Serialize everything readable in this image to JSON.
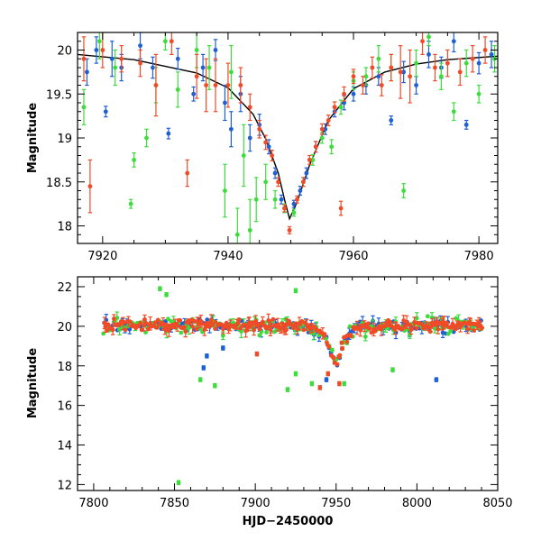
{
  "chart_data": [
    {
      "type": "scatter",
      "panel": "top",
      "xlabel": "",
      "ylabel": "Magnitude",
      "xlim": [
        7916,
        7983
      ],
      "ylim": [
        20.2,
        17.8
      ],
      "y_inverted": true,
      "x_ticks": [
        7920,
        7940,
        7960,
        7980
      ],
      "y_ticks": [
        18,
        18.5,
        19,
        19.5,
        20
      ],
      "y_tick_labels": [
        "18",
        "18.5",
        "19",
        "19.5",
        "20"
      ],
      "grid": false,
      "colors": {
        "blue": "#1f5fd6",
        "green": "#3ddc3d",
        "red": "#f04a26",
        "model": "#000000"
      },
      "model_curve": {
        "peak_x": 7949.8,
        "peak_mag": 18.08,
        "baseline_mag": 20.05,
        "width_days": 4.6,
        "x": [
          7916,
          7925,
          7935,
          7940,
          7944,
          7946,
          7948,
          7949,
          7949.8,
          7951,
          7953,
          7956,
          7960,
          7965,
          7970,
          7975,
          7983
        ],
        "y": [
          19.95,
          19.89,
          19.74,
          19.57,
          19.27,
          18.99,
          18.6,
          18.3,
          18.08,
          18.27,
          18.69,
          19.2,
          19.56,
          19.75,
          19.84,
          19.89,
          19.93
        ]
      },
      "series": [
        {
          "color": "blue",
          "points": [
            [
              7917.5,
              19.75,
              0.15
            ],
            [
              7919,
              20.0,
              0.15
            ],
            [
              7920.5,
              19.3,
              0.06
            ],
            [
              7921.5,
              19.9,
              0.2
            ],
            [
              7923,
              19.8,
              0.15
            ],
            [
              7926,
              20.05,
              0.15
            ],
            [
              7928,
              19.8,
              0.12
            ],
            [
              7930.5,
              19.05,
              0.06
            ],
            [
              7932,
              19.9,
              0.12
            ],
            [
              7934.5,
              19.5,
              0.08
            ],
            [
              7936,
              19.8,
              0.15
            ],
            [
              7938,
              20.0,
              0.12
            ],
            [
              7939.5,
              19.4,
              0.2
            ],
            [
              7940.5,
              19.1,
              0.2
            ],
            [
              7942,
              19.5,
              0.2
            ],
            [
              7943.5,
              19.0,
              0.15
            ],
            [
              7945,
              19.15,
              0.12
            ],
            [
              7946.5,
              18.9,
              0.08
            ],
            [
              7947.5,
              18.6,
              0.06
            ],
            [
              7948.5,
              18.3,
              0.05
            ],
            [
              7950.5,
              18.25,
              0.04
            ],
            [
              7951.5,
              18.4,
              0.05
            ],
            [
              7952.5,
              18.6,
              0.06
            ],
            [
              7954,
              18.9,
              0.06
            ],
            [
              7955.5,
              19.1,
              0.06
            ],
            [
              7957,
              19.3,
              0.06
            ],
            [
              7958.5,
              19.4,
              0.08
            ],
            [
              7960,
              19.5,
              0.08
            ],
            [
              7962,
              19.6,
              0.1
            ],
            [
              7964,
              19.7,
              0.1
            ],
            [
              7966,
              19.2,
              0.05
            ],
            [
              7968,
              19.75,
              0.12
            ],
            [
              7970,
              19.6,
              0.1
            ],
            [
              7972,
              19.95,
              0.15
            ],
            [
              7974,
              19.8,
              0.12
            ],
            [
              7976,
              20.1,
              0.12
            ],
            [
              7978,
              19.15,
              0.05
            ],
            [
              7980,
              19.85,
              0.12
            ],
            [
              7982,
              19.95,
              0.15
            ]
          ]
        },
        {
          "color": "green",
          "points": [
            [
              7917,
              19.35,
              0.2
            ],
            [
              7919.5,
              20.1,
              0.2
            ],
            [
              7922,
              19.8,
              0.2
            ],
            [
              7924.5,
              18.25,
              0.05
            ],
            [
              7925,
              18.75,
              0.08
            ],
            [
              7927,
              19.0,
              0.1
            ],
            [
              7928.5,
              19.6,
              0.2
            ],
            [
              7930,
              20.1,
              0.1
            ],
            [
              7932,
              19.55,
              0.2
            ],
            [
              7935,
              20.0,
              0.2
            ],
            [
              7937,
              19.8,
              0.25
            ],
            [
              7939.5,
              18.4,
              0.3
            ],
            [
              7940.5,
              19.75,
              0.3
            ],
            [
              7941.5,
              17.9,
              0.3
            ],
            [
              7942.5,
              18.8,
              0.35
            ],
            [
              7943.5,
              17.95,
              0.35
            ],
            [
              7944.5,
              18.3,
              0.25
            ],
            [
              7946,
              18.5,
              0.2
            ],
            [
              7947.5,
              18.3,
              0.1
            ],
            [
              7949,
              18.2,
              0.05
            ],
            [
              7950.5,
              18.15,
              0.04
            ],
            [
              7952,
              18.5,
              0.05
            ],
            [
              7953.5,
              18.75,
              0.06
            ],
            [
              7955,
              19.0,
              0.06
            ],
            [
              7956.5,
              18.9,
              0.08
            ],
            [
              7958,
              19.35,
              0.08
            ],
            [
              7960,
              19.65,
              0.1
            ],
            [
              7962,
              19.7,
              0.1
            ],
            [
              7964,
              19.9,
              0.15
            ],
            [
              7966,
              19.8,
              0.15
            ],
            [
              7968,
              18.4,
              0.08
            ],
            [
              7970,
              19.85,
              0.15
            ],
            [
              7972,
              20.15,
              0.1
            ],
            [
              7974,
              19.7,
              0.15
            ],
            [
              7976,
              19.3,
              0.1
            ],
            [
              7978,
              19.85,
              0.15
            ],
            [
              7980,
              19.5,
              0.1
            ],
            [
              7982.5,
              19.9,
              0.15
            ]
          ]
        },
        {
          "color": "red",
          "points": [
            [
              7917,
              19.9,
              0.25
            ],
            [
              7918,
              18.45,
              0.3
            ],
            [
              7920,
              20.0,
              0.2
            ],
            [
              7923,
              19.9,
              0.15
            ],
            [
              7926,
              19.85,
              0.15
            ],
            [
              7928.5,
              19.6,
              0.35
            ],
            [
              7931,
              20.1,
              0.15
            ],
            [
              7933.5,
              18.6,
              0.15
            ],
            [
              7935,
              19.7,
              0.25
            ],
            [
              7936.5,
              19.6,
              0.3
            ],
            [
              7938,
              19.6,
              0.3
            ],
            [
              7940,
              19.6,
              0.25
            ],
            [
              7942,
              19.6,
              0.2
            ],
            [
              7943.5,
              19.35,
              0.15
            ],
            [
              7945,
              19.1,
              0.1
            ],
            [
              7946,
              18.95,
              0.08
            ],
            [
              7947,
              18.8,
              0.06
            ],
            [
              7948,
              18.5,
              0.05
            ],
            [
              7949,
              18.2,
              0.04
            ],
            [
              7949.8,
              17.95,
              0.04
            ],
            [
              7951,
              18.3,
              0.04
            ],
            [
              7952,
              18.5,
              0.05
            ],
            [
              7953,
              18.75,
              0.05
            ],
            [
              7954,
              18.9,
              0.06
            ],
            [
              7955,
              19.1,
              0.06
            ],
            [
              7956,
              19.2,
              0.06
            ],
            [
              7957,
              19.35,
              0.06
            ],
            [
              7958.5,
              19.5,
              0.08
            ],
            [
              7960,
              19.7,
              0.08
            ],
            [
              7961.5,
              19.6,
              0.1
            ],
            [
              7963,
              19.8,
              0.12
            ],
            [
              7964.5,
              19.6,
              0.12
            ],
            [
              7966,
              19.8,
              0.15
            ],
            [
              7967.5,
              19.75,
              0.3
            ],
            [
              7969,
              19.7,
              0.3
            ],
            [
              7971,
              20.1,
              0.15
            ],
            [
              7973,
              19.8,
              0.15
            ],
            [
              7975,
              19.85,
              0.15
            ],
            [
              7977,
              19.75,
              0.15
            ],
            [
              7979,
              19.9,
              0.15
            ],
            [
              7981,
              20.0,
              0.15
            ],
            [
              7958,
              18.2,
              0.08
            ]
          ]
        }
      ]
    },
    {
      "type": "scatter",
      "panel": "bottom",
      "xlabel": "HJD−2450000",
      "ylabel": "Magnitude",
      "xlim": [
        7790,
        8050
      ],
      "ylim": [
        22.5,
        11.7
      ],
      "y_inverted": true,
      "x_ticks": [
        7800,
        7850,
        7900,
        7950,
        8000,
        8050
      ],
      "y_ticks": [
        12,
        14,
        16,
        18,
        20,
        22
      ],
      "y_tick_labels": [
        "12",
        "14",
        "16",
        "18",
        "20",
        "22"
      ],
      "grid": false,
      "colors": {
        "blue": "#1f5fd6",
        "green": "#3ddc3d",
        "red": "#f04a26",
        "model": "#000000"
      },
      "baseline_mag": 20.05,
      "event": {
        "peak_x": 7949.8,
        "peak_mag": 18.08,
        "width_days": 4.6
      },
      "dense_range": [
        7806,
        8040
      ],
      "outliers": [
        {
          "color": "green",
          "x": 7852.5,
          "y": 12.1
        },
        {
          "color": "green",
          "x": 7866,
          "y": 17.3
        },
        {
          "color": "green",
          "x": 7875,
          "y": 17.0
        },
        {
          "color": "green",
          "x": 7920,
          "y": 16.8
        },
        {
          "color": "green",
          "x": 7925,
          "y": 17.6
        },
        {
          "color": "green",
          "x": 7935,
          "y": 17.1
        },
        {
          "color": "green",
          "x": 7841,
          "y": 21.9
        },
        {
          "color": "green",
          "x": 7845,
          "y": 21.6
        },
        {
          "color": "green",
          "x": 7955,
          "y": 17.1
        },
        {
          "color": "green",
          "x": 7985,
          "y": 17.8
        },
        {
          "color": "green",
          "x": 7925,
          "y": 21.8
        },
        {
          "color": "blue",
          "x": 7868,
          "y": 17.9
        },
        {
          "color": "blue",
          "x": 7870,
          "y": 18.5
        },
        {
          "color": "blue",
          "x": 7880,
          "y": 18.9
        },
        {
          "color": "blue",
          "x": 7944,
          "y": 17.3
        },
        {
          "color": "blue",
          "x": 8012,
          "y": 17.3
        },
        {
          "color": "red",
          "x": 7940,
          "y": 16.9
        },
        {
          "color": "red",
          "x": 7945,
          "y": 17.6
        },
        {
          "color": "red",
          "x": 7952,
          "y": 17.1
        },
        {
          "color": "red",
          "x": 7901,
          "y": 18.6
        }
      ]
    }
  ]
}
